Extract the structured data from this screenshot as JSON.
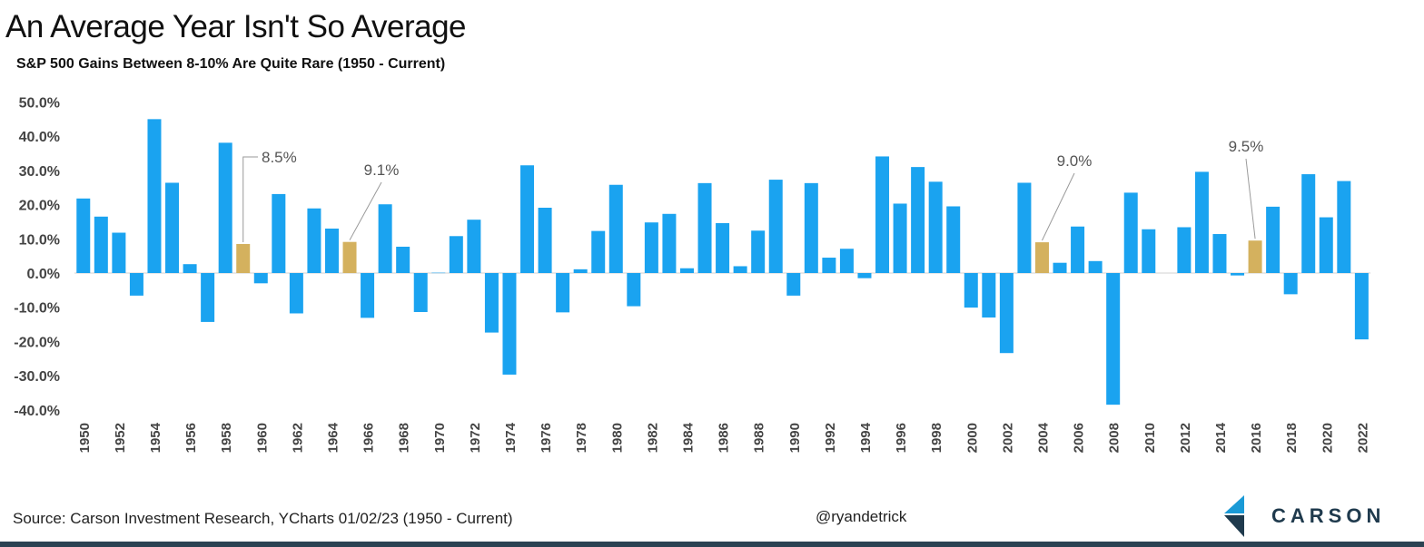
{
  "title": "An Average Year Isn't So Average",
  "subtitle": "S&P 500 Gains Between 8-10%  Are Quite Rare (1950 - Current)",
  "footer": {
    "source": "Source: Carson Investment Research, YCharts 01/02/23 (1950 - Current)",
    "handle": "@ryandetrick"
  },
  "logo": {
    "text": "CARSON",
    "icon": "carson-logo-icon",
    "colors": [
      "#1a9ad6",
      "#1f3a4d"
    ]
  },
  "colors": {
    "bar": "#1aa3f0",
    "highlight": "#d4b15e",
    "bottom_bar": "#2b4252"
  },
  "chart_data": {
    "type": "bar",
    "title": "An Average Year Isn't So Average",
    "subtitle": "S&P 500 Gains Between 8-10%  Are Quite Rare (1950 - Current)",
    "ylim": [
      -40,
      50
    ],
    "y_ticks": [
      50,
      40,
      30,
      20,
      10,
      0,
      -10,
      -20,
      -30,
      -40
    ],
    "y_tick_labels": [
      "50.0%",
      "40.0%",
      "30.0%",
      "20.0%",
      "10.0%",
      "0.0%",
      "-10.0%",
      "-20.0%",
      "-30.0%",
      "-40.0%"
    ],
    "x_tick_labels": [
      "1950",
      "1952",
      "1954",
      "1956",
      "1958",
      "1960",
      "1962",
      "1964",
      "1966",
      "1968",
      "1970",
      "1972",
      "1974",
      "1976",
      "1978",
      "1980",
      "1982",
      "1984",
      "1986",
      "1988",
      "1990",
      "1992",
      "1994",
      "1996",
      "1998",
      "2000",
      "2002",
      "2004",
      "2006",
      "2008",
      "2010",
      "2012",
      "2014",
      "2016",
      "2018",
      "2020",
      "2022"
    ],
    "grid": false,
    "categories": [
      1950,
      1951,
      1952,
      1953,
      1954,
      1955,
      1956,
      1957,
      1958,
      1959,
      1960,
      1961,
      1962,
      1963,
      1964,
      1965,
      1966,
      1967,
      1968,
      1969,
      1970,
      1971,
      1972,
      1973,
      1974,
      1975,
      1976,
      1977,
      1978,
      1979,
      1980,
      1981,
      1982,
      1983,
      1984,
      1985,
      1986,
      1987,
      1988,
      1989,
      1990,
      1991,
      1992,
      1993,
      1994,
      1995,
      1996,
      1997,
      1998,
      1999,
      2000,
      2001,
      2002,
      2003,
      2004,
      2005,
      2006,
      2007,
      2008,
      2009,
      2010,
      2011,
      2012,
      2013,
      2014,
      2015,
      2016,
      2017,
      2018,
      2019,
      2020,
      2021,
      2022
    ],
    "values": [
      21.8,
      16.5,
      11.8,
      -6.6,
      45.0,
      26.4,
      2.6,
      -14.3,
      38.1,
      8.5,
      -3.0,
      23.1,
      -11.8,
      18.9,
      13.0,
      9.1,
      -13.1,
      20.1,
      7.7,
      -11.4,
      0.1,
      10.8,
      15.6,
      -17.4,
      -29.7,
      31.5,
      19.1,
      -11.5,
      1.1,
      12.3,
      25.8,
      -9.7,
      14.8,
      17.3,
      1.4,
      26.3,
      14.6,
      2.0,
      12.4,
      27.3,
      -6.6,
      26.3,
      4.5,
      7.1,
      -1.5,
      34.1,
      20.3,
      31.0,
      26.7,
      19.5,
      -10.1,
      -13.0,
      -23.4,
      26.4,
      9.0,
      3.0,
      13.6,
      3.5,
      -38.5,
      23.5,
      12.8,
      0.0,
      13.4,
      29.6,
      11.4,
      -0.7,
      9.5,
      19.4,
      -6.2,
      28.9,
      16.3,
      26.9,
      -19.4
    ],
    "highlights": [
      {
        "year": 1959,
        "label": "8.5%"
      },
      {
        "year": 1965,
        "label": "9.1%"
      },
      {
        "year": 2004,
        "label": "9.0%"
      },
      {
        "year": 2016,
        "label": "9.5%"
      }
    ]
  }
}
